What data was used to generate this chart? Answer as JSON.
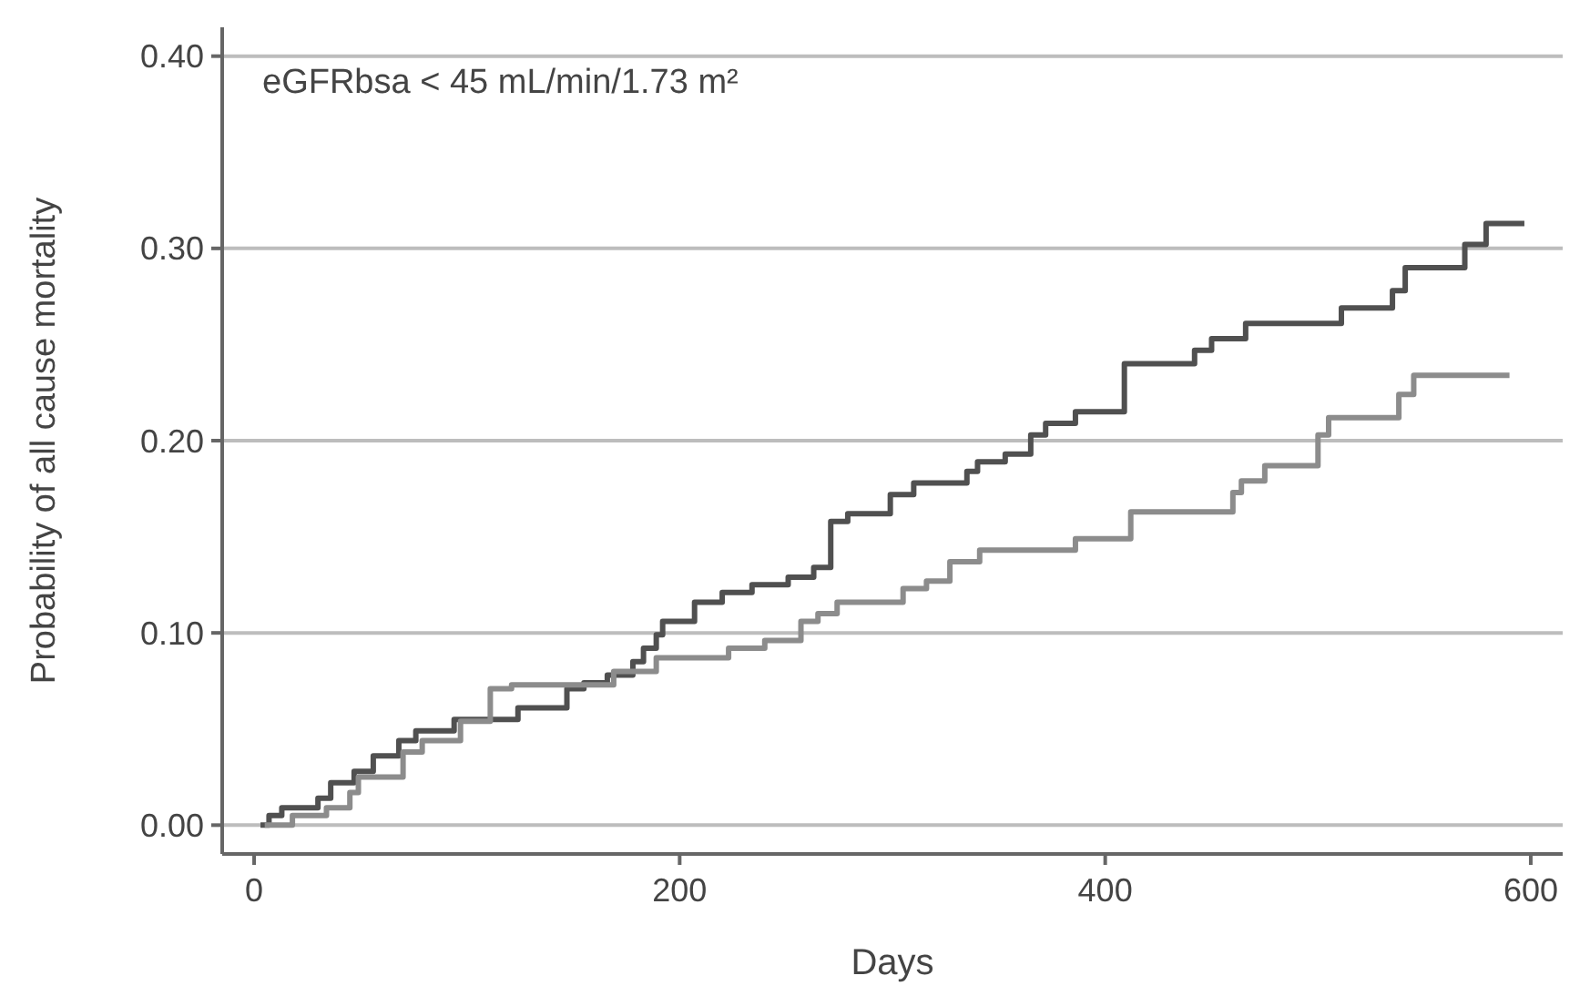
{
  "chart_data": {
    "type": "step",
    "xlabel": "Days",
    "ylabel": "Probability of all cause mortality",
    "annotations": [
      "eGFRbsa < 45 mL/min/1.73 m²"
    ],
    "xlim": [
      -15,
      615
    ],
    "ylim": [
      -0.015,
      0.415
    ],
    "xticks": [
      0,
      200,
      400,
      600
    ],
    "yticks": [
      {
        "value": 0,
        "label": "0.00"
      },
      {
        "value": 0.1,
        "label": "0.10"
      },
      {
        "value": 0.2,
        "label": "0.20"
      },
      {
        "value": 0.3,
        "label": "0.30"
      },
      {
        "value": 0.4,
        "label": "0.40"
      }
    ],
    "grid": "y",
    "marker": "none",
    "line_style": "solid",
    "series": [
      {
        "color": "#505050",
        "x": [
          3,
          7,
          13,
          30,
          36,
          47,
          56,
          68,
          76,
          94,
          124,
          147,
          155,
          166,
          178,
          183,
          189,
          192,
          207,
          220,
          234,
          251,
          263,
          271,
          279,
          299,
          310,
          335,
          340,
          353,
          365,
          372,
          386,
          409,
          420,
          442,
          450,
          466,
          511,
          535,
          541,
          569,
          579,
          597
        ],
        "values": [
          0,
          0.005,
          0.009,
          0.014,
          0.022,
          0.028,
          0.036,
          0.044,
          0.049,
          0.055,
          0.061,
          0.071,
          0.074,
          0.078,
          0.085,
          0.092,
          0.099,
          0.106,
          0.116,
          0.121,
          0.125,
          0.129,
          0.134,
          0.158,
          0.162,
          0.172,
          0.178,
          0.184,
          0.189,
          0.193,
          0.203,
          0.209,
          0.215,
          0.24,
          0.24,
          0.247,
          0.253,
          0.261,
          0.269,
          0.278,
          0.29,
          0.302,
          0.313,
          0.313
        ]
      },
      {
        "color": "#8c8c8c",
        "x": [
          5,
          18,
          34,
          45,
          49,
          70,
          79,
          97,
          111,
          121,
          147,
          169,
          189,
          223,
          240,
          257,
          265,
          274,
          305,
          316,
          327,
          341,
          386,
          412,
          460,
          464,
          475,
          500,
          505,
          538,
          545,
          590
        ],
        "values": [
          0,
          0.005,
          0.009,
          0.017,
          0.025,
          0.038,
          0.044,
          0.054,
          0.071,
          0.073,
          0.073,
          0.08,
          0.087,
          0.092,
          0.096,
          0.106,
          0.11,
          0.116,
          0.123,
          0.127,
          0.137,
          0.143,
          0.149,
          0.163,
          0.173,
          0.179,
          0.187,
          0.203,
          0.212,
          0.224,
          0.234,
          0.234
        ]
      }
    ]
  }
}
